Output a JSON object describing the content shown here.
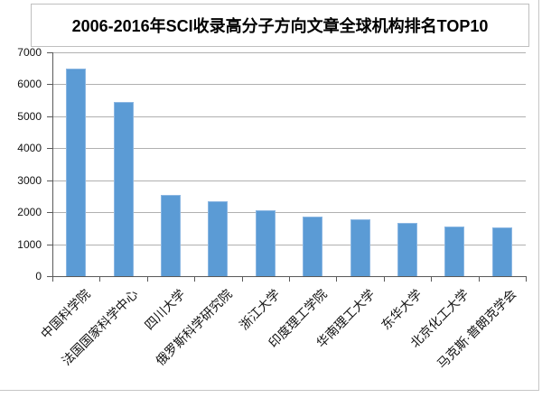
{
  "chart_data": {
    "type": "bar",
    "title": "2006-2016年SCI收录高分子方向文章全球机构排名TOP10",
    "categories": [
      "中国科学院",
      "法国国家科学中心",
      "四川大学",
      "俄罗斯科学研究院",
      "浙江大学",
      "印度理工学院",
      "华南理工大学",
      "东华大学",
      "北京化工大学",
      "马克斯·普朗克学会"
    ],
    "values": [
      6480,
      5450,
      2555,
      2345,
      2055,
      1855,
      1770,
      1665,
      1540,
      1520
    ],
    "xlabel": "",
    "ylabel": "",
    "ylim": [
      0,
      7000
    ],
    "yticks": [
      0,
      1000,
      2000,
      3000,
      4000,
      5000,
      6000,
      7000
    ],
    "grid": true,
    "legend": "none",
    "xlabel_rotation_deg": 45,
    "colors": {
      "bar_fill": "#5b9bd5",
      "bar_border": "#8ab6e2",
      "gridline": "#b0b0b0",
      "axis": "#595959",
      "text": "#111111",
      "frame_border": "#c6c6c6"
    }
  }
}
